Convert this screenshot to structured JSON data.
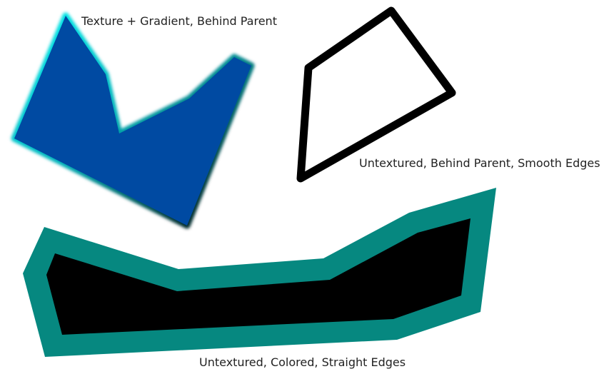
{
  "labels": {
    "textured_polygon": "Texture + Gradient, Behind Parent",
    "outline_polygon": "Untextured, Behind Parent, Smooth Edges",
    "colored_polygon": "Untextured, Colored, Straight Edges"
  },
  "colors": {
    "blue_fill": "#004aa2",
    "cyan_glow": "#00e0e0",
    "teal_outline": "#068880",
    "black": "#000000",
    "white": "#ffffff"
  }
}
